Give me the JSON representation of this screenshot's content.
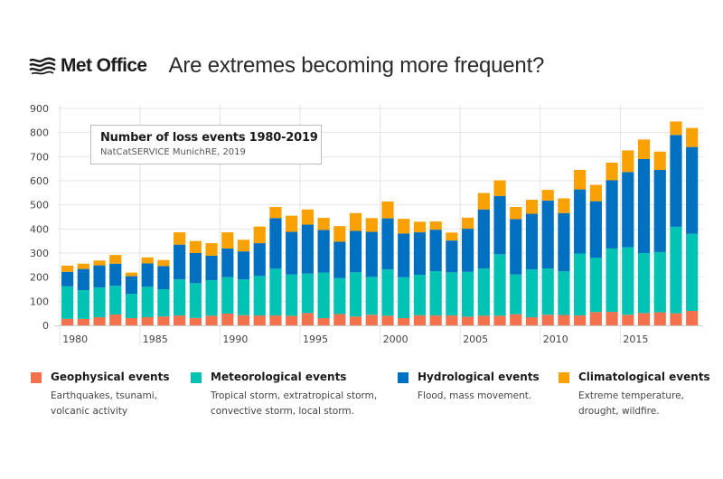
{
  "header": {
    "logo_text": "Met Office",
    "title": "Are extremes becoming more frequent?"
  },
  "chart_title": {
    "title": "Number of loss events 1980-2019",
    "source": "NatCatSERVICE MunichRE, 2019"
  },
  "colors": {
    "geophysical": "#f4714e",
    "meteorological": "#00c3b3",
    "hydrological": "#0070c0",
    "climatological": "#f8a100",
    "grid": "#e4e4e4",
    "axis": "#cccccc"
  },
  "legend": [
    {
      "name": "Geophysical events",
      "desc": [
        "Earthquakes, tsunami,",
        "volcanic activity"
      ],
      "color_key": "geophysical"
    },
    {
      "name": "Meteorological events",
      "desc": [
        "Tropical storm, extratropical storm,",
        "convective storm, local storm."
      ],
      "color_key": "meteorological"
    },
    {
      "name": "Hydrological events",
      "desc": [
        "Flood, mass movement."
      ],
      "color_key": "hydrological"
    },
    {
      "name": "Climatological events",
      "desc": [
        "Extreme temperature,",
        "drought, wildfire."
      ],
      "color_key": "climatological"
    }
  ],
  "chart_data": {
    "type": "bar",
    "stacked": true,
    "title": "Number of loss events 1980-2019",
    "subtitle": "NatCatSERVICE MunichRE, 2019",
    "xlabel": "",
    "ylabel": "",
    "ylim": [
      0,
      900
    ],
    "yticks": [
      0,
      100,
      200,
      300,
      400,
      500,
      600,
      700,
      800,
      900
    ],
    "xtick_labels": [
      "1980",
      "1985",
      "1990",
      "1995",
      "2000",
      "2005",
      "2010",
      "2015"
    ],
    "grid": true,
    "legend_position": "bottom",
    "categories": [
      "1980",
      "1981",
      "1982",
      "1983",
      "1984",
      "1985",
      "1986",
      "1987",
      "1988",
      "1989",
      "1990",
      "1991",
      "1992",
      "1993",
      "1994",
      "1995",
      "1996",
      "1997",
      "1998",
      "1999",
      "2000",
      "2001",
      "2002",
      "2003",
      "2004",
      "2005",
      "2006",
      "2007",
      "2008",
      "2009",
      "2010",
      "2011",
      "2012",
      "2013",
      "2014",
      "2015",
      "2016",
      "2017",
      "2018",
      "2019"
    ],
    "series": [
      {
        "name": "Geophysical events",
        "color_key": "geophysical",
        "values": [
          27,
          27,
          34,
          45,
          30,
          34,
          37,
          41,
          31,
          40,
          49,
          42,
          41,
          41,
          40,
          51,
          30,
          47,
          37,
          44,
          40,
          30,
          42,
          41,
          41,
          36,
          40,
          40,
          46,
          34,
          44,
          43,
          41,
          55,
          56,
          44,
          51,
          54,
          50,
          60
        ]
      },
      {
        "name": "Meteorological events",
        "color_key": "meteorological",
        "values": [
          135,
          119,
          123,
          119,
          101,
          126,
          113,
          150,
          144,
          147,
          151,
          149,
          164,
          194,
          171,
          164,
          189,
          149,
          183,
          157,
          192,
          170,
          168,
          184,
          179,
          186,
          196,
          255,
          165,
          198,
          192,
          181,
          257,
          226,
          263,
          280,
          249,
          250,
          359,
          320
        ]
      },
      {
        "name": "Hydrological events",
        "color_key": "hydrological",
        "values": [
          60,
          88,
          92,
          92,
          73,
          97,
          96,
          144,
          125,
          102,
          119,
          116,
          136,
          210,
          177,
          203,
          177,
          151,
          172,
          187,
          212,
          181,
          176,
          172,
          132,
          179,
          245,
          242,
          230,
          231,
          282,
          242,
          266,
          234,
          283,
          312,
          390,
          341,
          381,
          360
        ]
      },
      {
        "name": "Climatological events",
        "color_key": "climatological",
        "values": [
          26,
          22,
          20,
          36,
          15,
          25,
          25,
          51,
          50,
          52,
          67,
          48,
          69,
          46,
          67,
          63,
          50,
          65,
          74,
          57,
          70,
          61,
          44,
          34,
          33,
          46,
          68,
          65,
          50,
          58,
          44,
          61,
          81,
          68,
          73,
          90,
          81,
          76,
          56,
          79
        ]
      }
    ]
  }
}
